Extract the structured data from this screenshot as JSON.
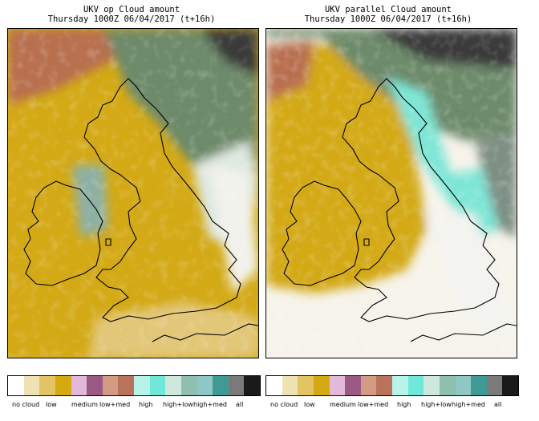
{
  "panels": [
    {
      "title_line1": "UKV op Cloud amount",
      "title_line2": "Thursday 1000Z 06/04/2017  (t+16h)"
    },
    {
      "title_line1": "UKV parallel Cloud amount",
      "title_line2": "Thursday 1000Z 06/04/2017  (t+16h)"
    }
  ],
  "legend": {
    "labels": [
      "no cloud",
      "low",
      "medium",
      "low+med",
      "high",
      "high+low",
      "high+med",
      "all"
    ],
    "colors": {
      "no_cloud": "#ffffff",
      "low": "#d4a912",
      "medium": "#9b5a86",
      "low_med": "#b9735a",
      "high": "#6fe8d8",
      "high_low": "#a8d8c8",
      "high_med": "#3f9a96",
      "all": "#1a1a1a"
    }
  }
}
